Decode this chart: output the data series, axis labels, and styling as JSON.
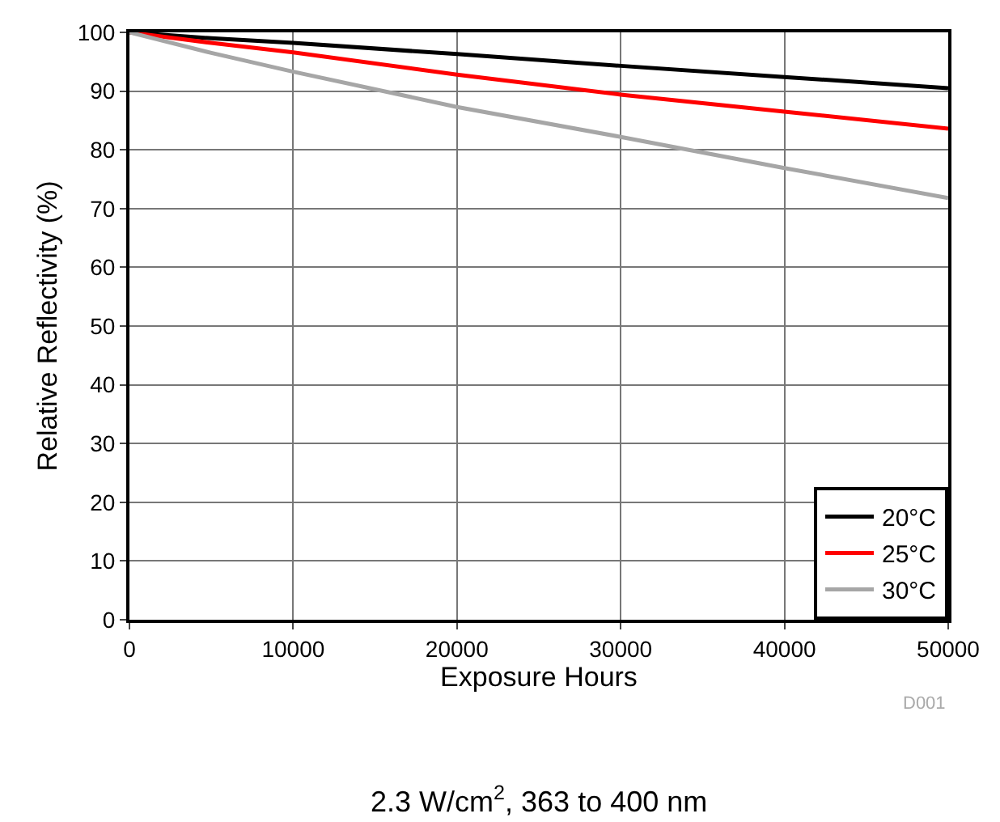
{
  "chart_data": {
    "type": "line",
    "xlabel": "Exposure Hours",
    "ylabel": "Relative Reflectivity (%)",
    "x": [
      0,
      5000,
      10000,
      20000,
      30000,
      40000,
      50000
    ],
    "series": [
      {
        "name": "20°C",
        "color": "#000000",
        "values": [
          100,
          99.0,
          98.2,
          96.3,
          94.3,
          92.4,
          90.5
        ]
      },
      {
        "name": "25°C",
        "color": "#ff0000",
        "values": [
          100,
          98.2,
          96.6,
          92.8,
          89.4,
          86.5,
          83.6
        ]
      },
      {
        "name": "30°C",
        "color": "#a6a6a6",
        "values": [
          100,
          96.5,
          93.3,
          87.3,
          82.2,
          76.9,
          71.8
        ]
      }
    ],
    "xlim": [
      0,
      50000
    ],
    "xticks": [
      0,
      10000,
      20000,
      30000,
      40000,
      50000
    ],
    "ylim": [
      0,
      100
    ],
    "yticks": [
      0,
      10,
      20,
      30,
      40,
      50,
      60,
      70,
      80,
      90,
      100
    ],
    "grid": true,
    "legend": "bottom right",
    "marker": "none",
    "line_style": "solid",
    "annotations": [
      "D001",
      "2.3 W/cm$^{2}$, 363 to 400 nm"
    ]
  }
}
